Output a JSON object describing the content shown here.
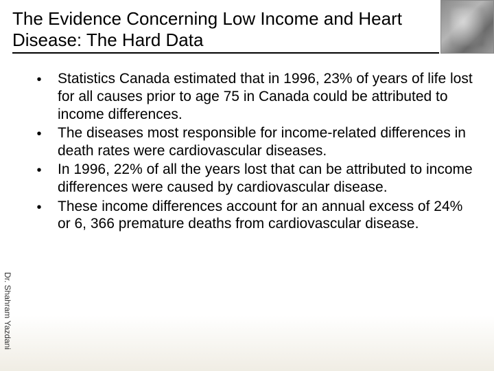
{
  "slide": {
    "title": "The Evidence Concerning Low Income and Heart Disease: The Hard Data",
    "title_fontsize": 26,
    "title_color": "#000000",
    "underline_color": "#000000",
    "background_gradient_top": "#ffffff",
    "background_gradient_bottom": "#f0ede4",
    "bullets": [
      "Statistics Canada estimated that in 1996, 23% of years of life lost for all causes prior to age 75 in Canada could be attributed to income differences.",
      "The diseases most responsible for income-related differences in death rates were cardiovascular diseases.",
      "In 1996, 22% of all the years lost that can be attributed to income differences were caused by cardiovascular disease.",
      "These income differences account for an annual excess of 24% or 6, 366 premature deaths from cardiovascular disease."
    ],
    "bullet_fontsize": 21,
    "bullet_color": "#000000",
    "footer_credit": "Dr. Shahram Yazdani",
    "footer_fontsize": 12,
    "footer_color": "#333333",
    "corner_image_desc": "grayscale photo thumbnail"
  }
}
